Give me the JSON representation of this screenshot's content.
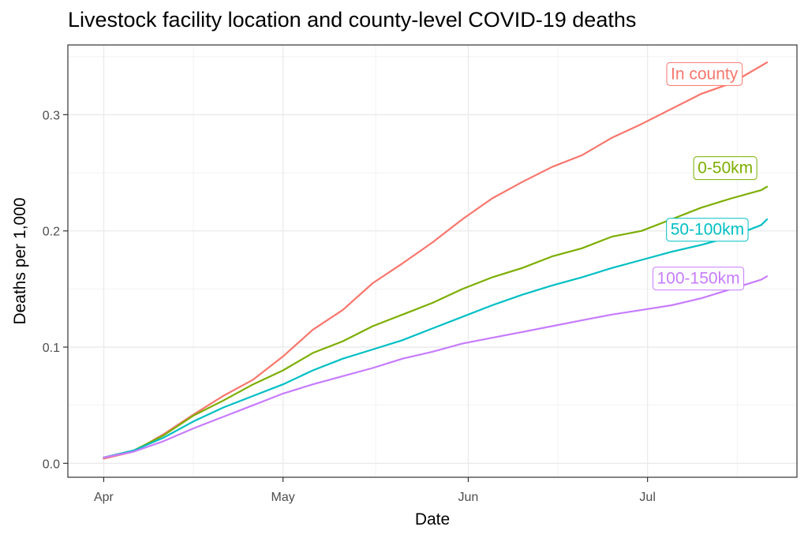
{
  "chart_data": {
    "type": "line",
    "title": "Livestock facility location and county-level COVID-19 deaths",
    "xlabel": "Date",
    "ylabel": "Deaths per 1,000",
    "x_ticks": [
      {
        "label": "Apr",
        "day": 0
      },
      {
        "label": "May",
        "day": 30
      },
      {
        "label": "Jun",
        "day": 61
      },
      {
        "label": "Jul",
        "day": 91
      }
    ],
    "xlim": [
      -6,
      116
    ],
    "ylim": [
      -0.012,
      0.36
    ],
    "y_ticks": [
      {
        "label": "0.0",
        "value": 0.0
      },
      {
        "label": "0.1",
        "value": 0.1
      },
      {
        "label": "0.2",
        "value": 0.2
      },
      {
        "label": "0.3",
        "value": 0.3
      }
    ],
    "x_unit": "days since Apr 1",
    "series": [
      {
        "name": "In county",
        "color": "#F8766D",
        "x": [
          0,
          5,
          10,
          15,
          20,
          25,
          30,
          35,
          40,
          45,
          50,
          55,
          60,
          65,
          70,
          75,
          80,
          85,
          90,
          95,
          100,
          105,
          110,
          111
        ],
        "values": [
          0.004,
          0.01,
          0.025,
          0.042,
          0.058,
          0.072,
          0.092,
          0.115,
          0.132,
          0.155,
          0.172,
          0.19,
          0.21,
          0.228,
          0.242,
          0.255,
          0.265,
          0.28,
          0.292,
          0.305,
          0.318,
          0.327,
          0.342,
          0.345
        ]
      },
      {
        "name": "0-50km",
        "color": "#7CAE00",
        "x": [
          0,
          5,
          10,
          15,
          20,
          25,
          30,
          35,
          40,
          45,
          50,
          55,
          60,
          65,
          70,
          75,
          80,
          85,
          90,
          95,
          100,
          105,
          110,
          111
        ],
        "values": [
          0.005,
          0.011,
          0.024,
          0.041,
          0.054,
          0.068,
          0.08,
          0.095,
          0.105,
          0.118,
          0.128,
          0.138,
          0.15,
          0.16,
          0.168,
          0.178,
          0.185,
          0.195,
          0.2,
          0.21,
          0.22,
          0.228,
          0.235,
          0.238
        ]
      },
      {
        "name": "50-100km",
        "color": "#00BFC4",
        "x": [
          0,
          5,
          10,
          15,
          20,
          25,
          30,
          35,
          40,
          45,
          50,
          55,
          60,
          65,
          70,
          75,
          80,
          85,
          90,
          95,
          100,
          105,
          110,
          111
        ],
        "values": [
          0.005,
          0.011,
          0.022,
          0.036,
          0.048,
          0.058,
          0.068,
          0.08,
          0.09,
          0.098,
          0.106,
          0.116,
          0.126,
          0.136,
          0.145,
          0.153,
          0.16,
          0.168,
          0.175,
          0.182,
          0.188,
          0.195,
          0.205,
          0.21
        ]
      },
      {
        "name": "100-150km",
        "color": "#C77CFF",
        "x": [
          0,
          5,
          10,
          15,
          20,
          25,
          30,
          35,
          40,
          45,
          50,
          55,
          60,
          65,
          70,
          75,
          80,
          85,
          90,
          95,
          100,
          105,
          110,
          111
        ],
        "values": [
          0.005,
          0.01,
          0.019,
          0.03,
          0.04,
          0.05,
          0.06,
          0.068,
          0.075,
          0.082,
          0.09,
          0.096,
          0.103,
          0.108,
          0.113,
          0.118,
          0.123,
          0.128,
          0.132,
          0.136,
          0.142,
          0.15,
          0.158,
          0.161
        ]
      }
    ],
    "series_labels": [
      {
        "text": "In county",
        "x": 100.5,
        "y": 0.335
      },
      {
        "text": "0-50km",
        "x": 104,
        "y": 0.254
      },
      {
        "text": "50-100km",
        "x": 101,
        "y": 0.201
      },
      {
        "text": "100-150km",
        "x": 99.5,
        "y": 0.159
      }
    ],
    "grid": true,
    "legend": "direct labels at line ends"
  }
}
